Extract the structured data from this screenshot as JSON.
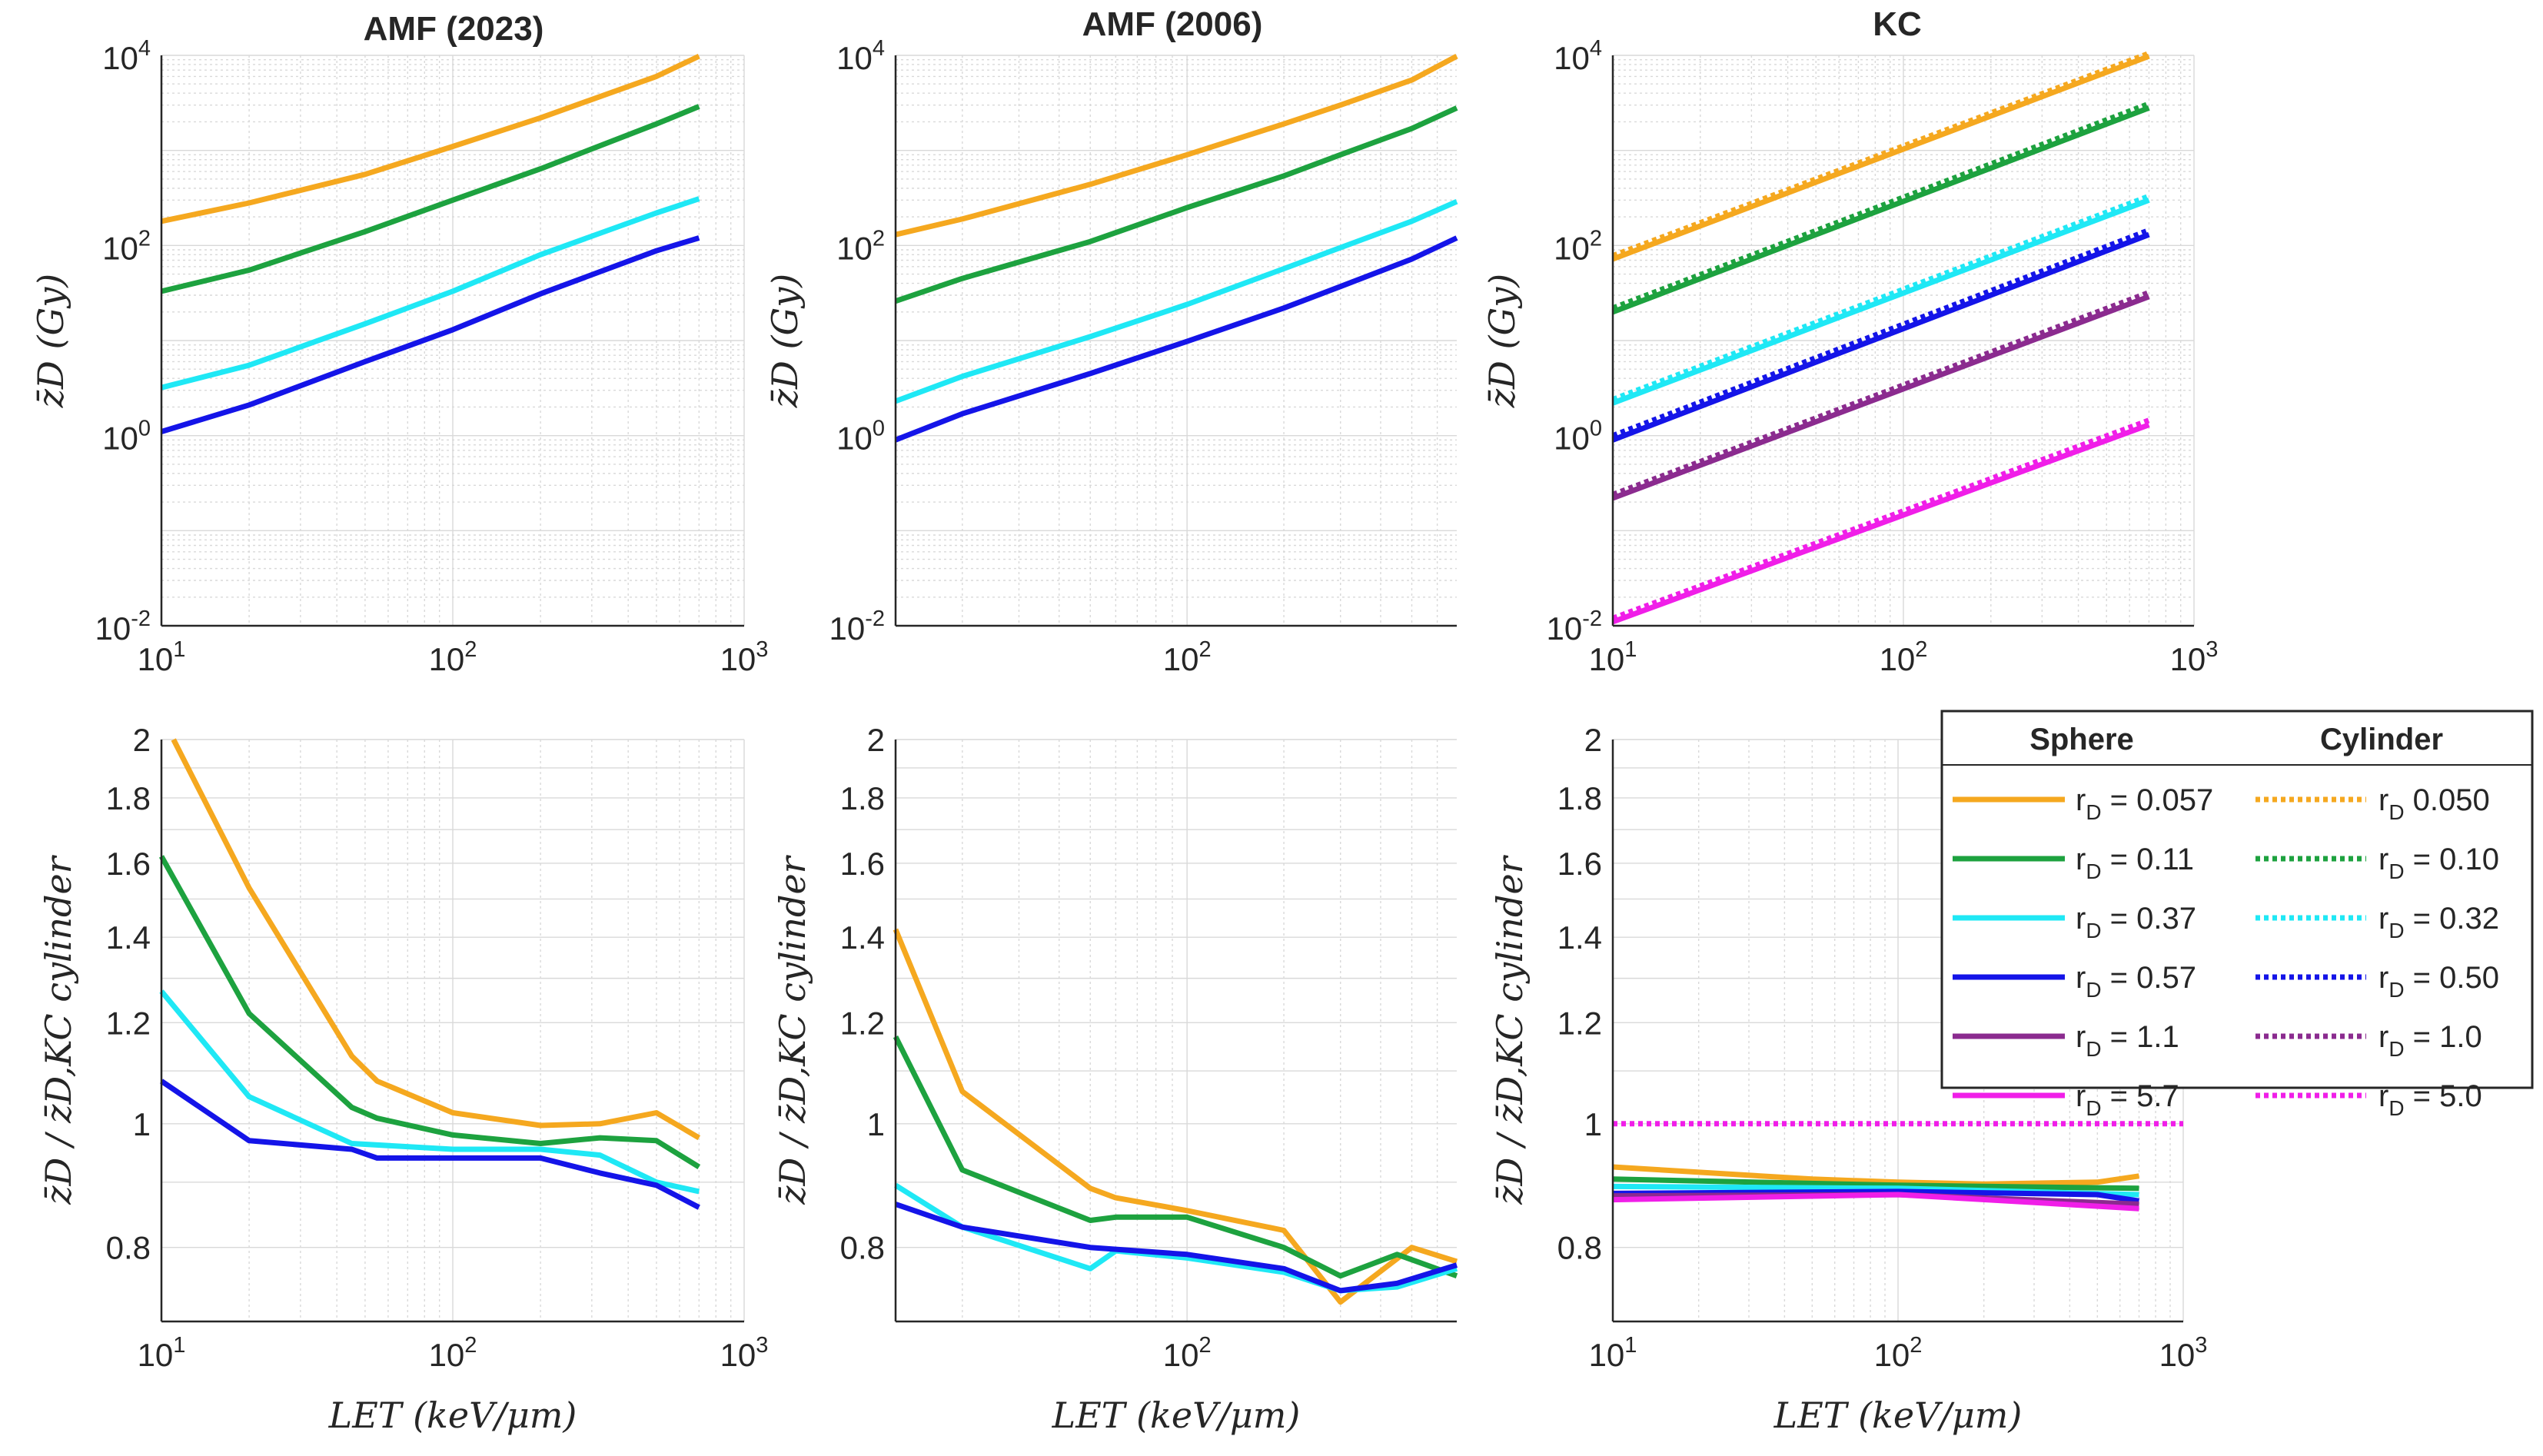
{
  "chart_data": [
    {
      "id": "amf2023-z",
      "type": "line",
      "title": "AMF (2023)",
      "ylabel": "z̄_D (Gy)",
      "xscale": "log",
      "yscale": "log",
      "xlim": [
        10,
        1000
      ],
      "ylim": [
        0.01,
        10000
      ],
      "x_ticks": [
        {
          "base": "10",
          "exp": "1",
          "value": 10
        },
        {
          "base": "10",
          "exp": "2",
          "value": 100
        },
        {
          "base": "10",
          "exp": "3",
          "value": 1000
        }
      ],
      "y_ticks": [
        {
          "base": "10",
          "exp": "-2",
          "value": 0.01
        },
        {
          "base": "10",
          "exp": "0",
          "value": 1
        },
        {
          "base": "10",
          "exp": "2",
          "value": 100
        },
        {
          "base": "10",
          "exp": "4",
          "value": 10000
        }
      ],
      "grid": true,
      "series": [
        {
          "name": "r_D = 0.057",
          "color": "orange",
          "style": "solid",
          "x": [
            10,
            20,
            50,
            100,
            200,
            500,
            700
          ],
          "y": [
            180,
            280,
            560,
            1100,
            2200,
            6000,
            9800
          ]
        },
        {
          "name": "r_D = 0.11",
          "color": "green",
          "style": "solid",
          "x": [
            10,
            20,
            50,
            100,
            200,
            500,
            700
          ],
          "y": [
            33,
            55,
            140,
            300,
            640,
            1900,
            2900
          ]
        },
        {
          "name": "r_D = 0.37",
          "color": "cyan",
          "style": "solid",
          "x": [
            10,
            20,
            50,
            100,
            200,
            500,
            700
          ],
          "y": [
            3.2,
            5.5,
            15,
            33,
            80,
            220,
            310
          ]
        },
        {
          "name": "r_D = 0.57",
          "color": "blue",
          "style": "solid",
          "x": [
            10,
            20,
            50,
            100,
            200,
            500,
            700
          ],
          "y": [
            1.1,
            2.1,
            6,
            13,
            31,
            88,
            120
          ]
        }
      ]
    },
    {
      "id": "amf2006-z",
      "type": "line",
      "title": "AMF (2006)",
      "ylabel": "z̄_D (Gy)",
      "xscale": "log",
      "yscale": "log",
      "xlim": [
        12.4,
        690
      ],
      "ylim": [
        0.01,
        10000
      ],
      "x_ticks": [
        {
          "base": "10",
          "exp": "2",
          "value": 100
        }
      ],
      "y_ticks": [
        {
          "base": "10",
          "exp": "-2",
          "value": 0.01
        },
        {
          "base": "10",
          "exp": "0",
          "value": 1
        },
        {
          "base": "10",
          "exp": "2",
          "value": 100
        },
        {
          "base": "10",
          "exp": "4",
          "value": 10000
        }
      ],
      "grid": true,
      "series": [
        {
          "name": "r_D = 0.057",
          "color": "orange",
          "style": "solid",
          "x": [
            12.4,
            20,
            50,
            100,
            200,
            300,
            500,
            690
          ],
          "y": [
            130,
            190,
            440,
            900,
            1900,
            3000,
            5500,
            9800
          ]
        },
        {
          "name": "r_D = 0.11",
          "color": "green",
          "style": "solid",
          "x": [
            12.4,
            20,
            50,
            100,
            200,
            300,
            500,
            690
          ],
          "y": [
            26,
            45,
            110,
            250,
            540,
            900,
            1700,
            2800
          ]
        },
        {
          "name": "r_D = 0.37",
          "color": "cyan",
          "style": "solid",
          "x": [
            12.4,
            20,
            50,
            100,
            200,
            300,
            500,
            690
          ],
          "y": [
            2.3,
            4.2,
            11,
            24,
            57,
            95,
            180,
            290
          ]
        },
        {
          "name": "r_D = 0.57",
          "color": "blue",
          "style": "solid",
          "x": [
            12.4,
            20,
            50,
            100,
            200,
            300,
            500,
            690
          ],
          "y": [
            0.9,
            1.7,
            4.5,
            9.8,
            22,
            37,
            72,
            120
          ]
        }
      ]
    },
    {
      "id": "kc-z",
      "type": "line",
      "title": "KC",
      "ylabel": "z̄_D (Gy)",
      "xscale": "log",
      "yscale": "log",
      "xlim": [
        10,
        1000
      ],
      "ylim": [
        0.01,
        10000
      ],
      "x_ticks": [
        {
          "base": "10",
          "exp": "1",
          "value": 10
        },
        {
          "base": "10",
          "exp": "2",
          "value": 100
        },
        {
          "base": "10",
          "exp": "3",
          "value": 1000
        }
      ],
      "y_ticks": [
        {
          "base": "10",
          "exp": "-2",
          "value": 0.01
        },
        {
          "base": "10",
          "exp": "0",
          "value": 1
        },
        {
          "base": "10",
          "exp": "2",
          "value": 100
        },
        {
          "base": "10",
          "exp": "4",
          "value": 10000
        }
      ],
      "grid": true,
      "series": [
        {
          "name": "r_D = 0.057",
          "color": "orange",
          "style": "solid",
          "x": [
            10,
            700
          ],
          "y": [
            72,
            9800
          ]
        },
        {
          "name": "r_D = 0.11",
          "color": "green",
          "style": "solid",
          "x": [
            10,
            700
          ],
          "y": [
            20,
            2800
          ]
        },
        {
          "name": "r_D = 0.37",
          "color": "cyan",
          "style": "solid",
          "x": [
            10,
            700
          ],
          "y": [
            2.2,
            300
          ]
        },
        {
          "name": "r_D = 0.57",
          "color": "blue",
          "style": "solid",
          "x": [
            10,
            700
          ],
          "y": [
            0.9,
            130
          ]
        },
        {
          "name": "r_D = 1.1",
          "color": "purple",
          "style": "solid",
          "x": [
            10,
            700
          ],
          "y": [
            0.22,
            29
          ]
        },
        {
          "name": "r_D = 5.7",
          "color": "magenta",
          "style": "solid",
          "x": [
            10,
            700
          ],
          "y": [
            0.011,
            1.3
          ]
        },
        {
          "name": "r_D = 0.050",
          "color": "orange",
          "style": "dotted",
          "x": [
            10,
            700
          ],
          "y": [
            78,
            10500
          ]
        },
        {
          "name": "r_D = 0.10",
          "color": "green",
          "style": "dotted",
          "x": [
            10,
            700
          ],
          "y": [
            22,
            3100
          ]
        },
        {
          "name": "r_D = 0.32",
          "color": "cyan",
          "style": "dotted",
          "x": [
            10,
            700
          ],
          "y": [
            2.4,
            330
          ]
        },
        {
          "name": "r_D = 0.50",
          "color": "blue",
          "style": "dotted",
          "x": [
            10,
            700
          ],
          "y": [
            1.0,
            145
          ]
        },
        {
          "name": "r_D = 1.0",
          "color": "purple",
          "style": "dotted",
          "x": [
            10,
            700
          ],
          "y": [
            0.24,
            32
          ]
        },
        {
          "name": "r_D = 5.0",
          "color": "magenta",
          "style": "dotted",
          "x": [
            10,
            700
          ],
          "y": [
            0.012,
            1.45
          ]
        }
      ]
    },
    {
      "id": "amf2023-ratio",
      "type": "line",
      "ylabel": "z̄_D / z̄_D,KC cylinder",
      "xlabel": "LET (keV/μm)",
      "xscale": "log",
      "yscale": "log",
      "xlim": [
        10,
        1000
      ],
      "ylim": [
        0.7,
        2
      ],
      "x_ticks": [
        {
          "base": "10",
          "exp": "1",
          "value": 10
        },
        {
          "base": "10",
          "exp": "2",
          "value": 100
        },
        {
          "base": "10",
          "exp": "3",
          "value": 1000
        }
      ],
      "y_ticks": [
        {
          "label": "0.8",
          "value": 0.8
        },
        {
          "label": "1",
          "value": 1
        },
        {
          "label": "1.2",
          "value": 1.2
        },
        {
          "label": "1.4",
          "value": 1.4
        },
        {
          "label": "1.6",
          "value": 1.6
        },
        {
          "label": "1.8",
          "value": 1.8
        },
        {
          "label": "2",
          "value": 2
        }
      ],
      "grid": true,
      "series": [
        {
          "name": "r_D = 0.057",
          "color": "orange",
          "style": "solid",
          "x": [
            11,
            20,
            45,
            55,
            100,
            200,
            320,
            500,
            700
          ],
          "y": [
            2.0,
            1.53,
            1.13,
            1.08,
            1.02,
            0.997,
            1.0,
            1.02,
            0.975
          ]
        },
        {
          "name": "r_D = 0.11",
          "color": "green",
          "style": "solid",
          "x": [
            10,
            20,
            45,
            55,
            100,
            200,
            320,
            500,
            700
          ],
          "y": [
            1.62,
            1.22,
            1.03,
            1.01,
            0.98,
            0.965,
            0.975,
            0.97,
            0.925
          ]
        },
        {
          "name": "r_D = 0.37",
          "color": "cyan",
          "style": "solid",
          "x": [
            10,
            20,
            45,
            100,
            200,
            320,
            500,
            700
          ],
          "y": [
            1.27,
            1.05,
            0.965,
            0.955,
            0.955,
            0.945,
            0.9,
            0.885
          ]
        },
        {
          "name": "r_D = 0.57",
          "color": "blue",
          "style": "solid",
          "x": [
            10,
            20,
            45,
            55,
            100,
            200,
            320,
            500,
            700
          ],
          "y": [
            1.08,
            0.97,
            0.955,
            0.94,
            0.94,
            0.94,
            0.915,
            0.895,
            0.86
          ]
        }
      ]
    },
    {
      "id": "amf2006-ratio",
      "type": "line",
      "ylabel": "z̄_D / z̄_D,KC cylinder",
      "xlabel": "LET (keV/μm)",
      "xscale": "log",
      "yscale": "log",
      "xlim": [
        12.4,
        690
      ],
      "ylim": [
        0.7,
        2
      ],
      "x_ticks": [
        {
          "base": "10",
          "exp": "2",
          "value": 100
        }
      ],
      "y_ticks": [
        {
          "label": "0.8",
          "value": 0.8
        },
        {
          "label": "1",
          "value": 1
        },
        {
          "label": "1.2",
          "value": 1.2
        },
        {
          "label": "1.4",
          "value": 1.4
        },
        {
          "label": "1.6",
          "value": 1.6
        },
        {
          "label": "1.8",
          "value": 1.8
        },
        {
          "label": "2",
          "value": 2
        }
      ],
      "grid": true,
      "series": [
        {
          "name": "r_D = 0.057",
          "color": "orange",
          "style": "solid",
          "x": [
            12.4,
            20,
            50,
            60,
            100,
            200,
            300,
            500,
            690
          ],
          "y": [
            1.42,
            1.06,
            0.89,
            0.875,
            0.855,
            0.825,
            0.725,
            0.8,
            0.78
          ]
        },
        {
          "name": "r_D = 0.11",
          "color": "green",
          "style": "solid",
          "x": [
            12.4,
            20,
            50,
            60,
            100,
            200,
            300,
            450,
            690
          ],
          "y": [
            1.17,
            0.92,
            0.84,
            0.845,
            0.845,
            0.8,
            0.76,
            0.79,
            0.76
          ]
        },
        {
          "name": "r_D = 0.37",
          "color": "cyan",
          "style": "solid",
          "x": [
            12.4,
            20,
            50,
            60,
            100,
            200,
            300,
            450,
            690
          ],
          "y": [
            0.895,
            0.83,
            0.77,
            0.795,
            0.785,
            0.765,
            0.74,
            0.745,
            0.77
          ]
        },
        {
          "name": "r_D = 0.57",
          "color": "blue",
          "style": "solid",
          "x": [
            12.4,
            20,
            50,
            100,
            200,
            300,
            450,
            690
          ],
          "y": [
            0.865,
            0.83,
            0.8,
            0.79,
            0.77,
            0.74,
            0.75,
            0.775
          ]
        }
      ]
    },
    {
      "id": "kc-ratio",
      "type": "line",
      "ylabel": "z̄_D / z̄_D,KC cylinder",
      "xlabel": "LET (keV/μm)",
      "xscale": "log",
      "yscale": "log",
      "xlim": [
        10,
        1000
      ],
      "ylim": [
        0.7,
        2
      ],
      "x_ticks": [
        {
          "base": "10",
          "exp": "1",
          "value": 10
        },
        {
          "base": "10",
          "exp": "2",
          "value": 100
        },
        {
          "base": "10",
          "exp": "3",
          "value": 1000
        }
      ],
      "y_ticks": [
        {
          "label": "0.8",
          "value": 0.8
        },
        {
          "label": "1",
          "value": 1
        },
        {
          "label": "1.2",
          "value": 1.2
        },
        {
          "label": "1.4",
          "value": 1.4
        },
        {
          "label": "1.6",
          "value": 1.6
        },
        {
          "label": "1.8",
          "value": 1.8
        },
        {
          "label": "2",
          "value": 2
        }
      ],
      "grid": true,
      "series": [
        {
          "name": "r_D = 0.057",
          "color": "orange",
          "style": "solid",
          "x": [
            10,
            50,
            100,
            200,
            500,
            700
          ],
          "y": [
            0.925,
            0.905,
            0.9,
            0.897,
            0.9,
            0.91
          ]
        },
        {
          "name": "r_D = 0.11",
          "color": "green",
          "style": "solid",
          "x": [
            10,
            100,
            700
          ],
          "y": [
            0.905,
            0.895,
            0.89
          ]
        },
        {
          "name": "r_D = 0.37",
          "color": "cyan",
          "style": "solid",
          "x": [
            10,
            100,
            700
          ],
          "y": [
            0.893,
            0.89,
            0.88
          ]
        },
        {
          "name": "r_D = 0.57",
          "color": "blue",
          "style": "solid",
          "x": [
            10,
            100,
            500,
            700
          ],
          "y": [
            0.882,
            0.885,
            0.88,
            0.87
          ]
        },
        {
          "name": "r_D = 1.1",
          "color": "purple",
          "style": "solid",
          "x": [
            10,
            100,
            700
          ],
          "y": [
            0.878,
            0.88,
            0.865
          ]
        },
        {
          "name": "r_D = 5.7",
          "color": "magenta",
          "style": "solid",
          "x": [
            10,
            100,
            700
          ],
          "y": [
            0.872,
            0.88,
            0.858
          ]
        },
        {
          "name": "r_D = 5.0",
          "color": "magenta",
          "style": "dotted",
          "x": [
            10,
            1000
          ],
          "y": [
            1.0,
            1.0
          ]
        }
      ]
    }
  ],
  "colors": {
    "orange": "#F5A81F",
    "green": "#1DA23F",
    "cyan": "#1FE8F5",
    "blue": "#1414E8",
    "purple": "#8B2B8F",
    "magenta": "#F01EE8",
    "grid": "#d9d9d9",
    "axis": "#262626"
  },
  "legend": {
    "placement": "right of bottom-right panel",
    "header_sphere": "Sphere",
    "header_cylinder": "Cylinder",
    "rows": [
      {
        "color": "orange",
        "sphere_r": "r",
        "sphere_sub": "D",
        "sphere_val": "= 0.057",
        "cyl_r": "r",
        "cyl_sub": "D",
        "cyl_val": "0.050"
      },
      {
        "color": "green",
        "sphere_r": "r",
        "sphere_sub": "D",
        "sphere_val": "= 0.11",
        "cyl_r": "r",
        "cyl_sub": "D",
        "cyl_val": "= 0.10"
      },
      {
        "color": "cyan",
        "sphere_r": "r",
        "sphere_sub": "D",
        "sphere_val": "= 0.37",
        "cyl_r": "r",
        "cyl_sub": "D",
        "cyl_val": "= 0.32"
      },
      {
        "color": "blue",
        "sphere_r": "r",
        "sphere_sub": "D",
        "sphere_val": "= 0.57",
        "cyl_r": "r",
        "cyl_sub": "D",
        "cyl_val": "= 0.50"
      },
      {
        "color": "purple",
        "sphere_r": "r",
        "sphere_sub": "D",
        "sphere_val": "= 1.1",
        "cyl_r": "r",
        "cyl_sub": "D",
        "cyl_val": "= 1.0"
      },
      {
        "color": "magenta",
        "sphere_r": "r",
        "sphere_sub": "D",
        "sphere_val": "= 5.7",
        "cyl_r": "r",
        "cyl_sub": "D",
        "cyl_val": "= 5.0"
      }
    ]
  },
  "labels": {
    "z_label": "z̄D (Gy)",
    "ratio_label": "z̄D / z̄D,KC cylinder",
    "x_label": "LET (keV/μm)"
  }
}
